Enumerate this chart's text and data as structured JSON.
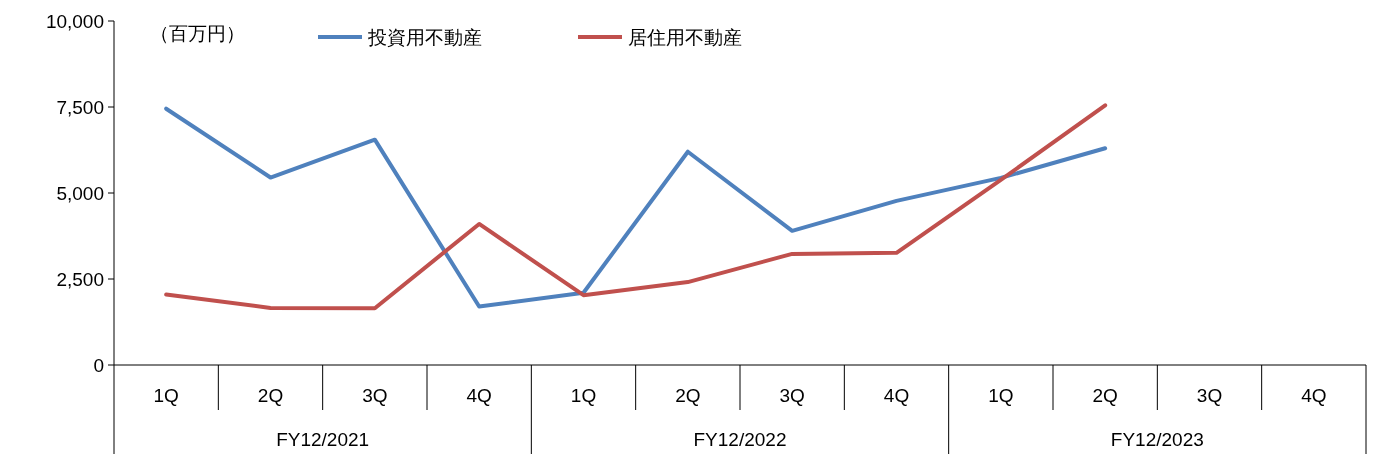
{
  "chart_data": {
    "type": "line",
    "ylabel": "（百万円）",
    "categories": [
      "1Q",
      "2Q",
      "3Q",
      "4Q",
      "1Q",
      "2Q",
      "3Q",
      "4Q",
      "1Q",
      "2Q",
      "3Q",
      "4Q"
    ],
    "annotations": [
      "FY12/2021",
      "FY12/2022",
      "FY12/2023"
    ],
    "series": [
      {
        "name": "投資用不動産",
        "color": "#4f81bd",
        "values": [
          7450,
          5450,
          6550,
          1700,
          2100,
          6200,
          3900,
          4770,
          5440,
          6300,
          null,
          null
        ]
      },
      {
        "name": "居住用不動産",
        "color": "#c0504d",
        "values": [
          2050,
          1660,
          1650,
          4100,
          2030,
          2410,
          3230,
          3260,
          5380,
          7550,
          null,
          null
        ]
      }
    ],
    "ylim": [
      0,
      10000
    ],
    "yticks": [
      {
        "value": 0,
        "label": "0"
      },
      {
        "value": 2500,
        "label": "2,500"
      },
      {
        "value": 5000,
        "label": "5,000"
      },
      {
        "value": 7500,
        "label": "7,500"
      },
      {
        "value": 10000,
        "label": "10,000"
      }
    ],
    "grid": false,
    "legend": "top",
    "marker": "none",
    "line_style": "solid"
  }
}
